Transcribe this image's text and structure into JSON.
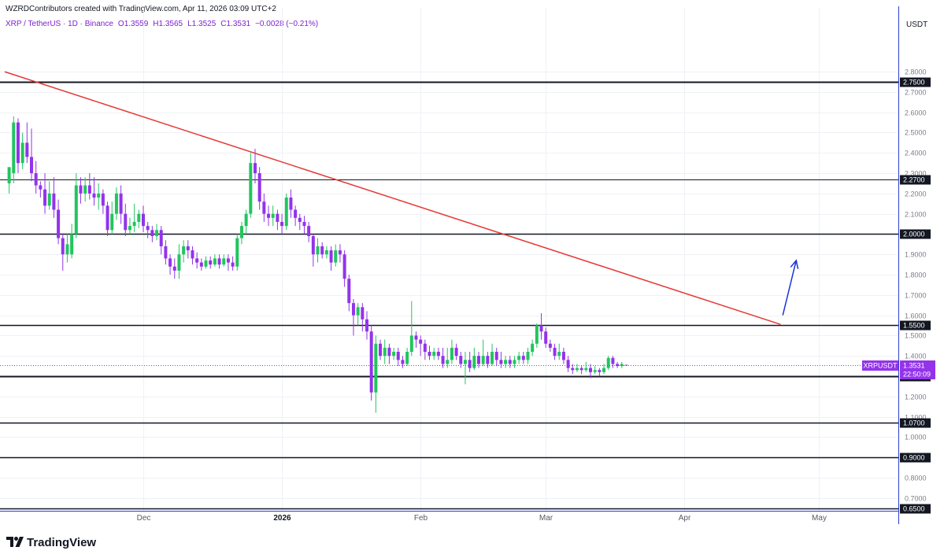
{
  "header": {
    "credit": "WZRDContributors created with TradingView.com, Apr 11, 2026 03:09 UTC+2",
    "symbol": "XRP / TetherUS · 1D · Binance",
    "open": "O1.3559",
    "high": "H1.3565",
    "low": "L1.3525",
    "close": "C1.3531",
    "change": "−0.0028 (−0.21%)"
  },
  "axis_unit": "USDT",
  "brand": {
    "name": "TradingView"
  },
  "colors": {
    "up": "#22c55e",
    "down": "#9333ea",
    "trendline": "#e53935",
    "arrow": "#1a33d6",
    "level": "#131722",
    "grid": "#eef1f6",
    "price_tag": "#9333ea"
  },
  "current_price": {
    "symbol": "XRPUSDT",
    "price": "1.3531",
    "countdown": "22:50:09",
    "value": 1.3531
  },
  "chart_data": {
    "type": "candlestick",
    "interval": "1D",
    "y_range": [
      0.62,
      2.88
    ],
    "y_ticks": [
      "2.8000",
      "2.7000",
      "2.6000",
      "2.5000",
      "2.4000",
      "2.3000",
      "2.2000",
      "2.1000",
      "2.0000",
      "1.9000",
      "1.8000",
      "1.7000",
      "1.6000",
      "1.5000",
      "1.4000",
      "1.3000",
      "1.2000",
      "1.1000",
      "1.0000",
      "0.9000",
      "0.8000",
      "0.7000"
    ],
    "x_ticks": [
      {
        "label": "Dec",
        "day": 30,
        "year": false
      },
      {
        "label": "2026",
        "day": 61,
        "year": true
      },
      {
        "label": "Feb",
        "day": 92,
        "year": false
      },
      {
        "label": "Mar",
        "day": 120,
        "year": false
      },
      {
        "label": "Apr",
        "day": 151,
        "year": false
      },
      {
        "label": "May",
        "day": 181,
        "year": false
      }
    ],
    "levels": [
      {
        "value": 2.75,
        "label": "2.7500",
        "width": 2
      },
      {
        "value": 2.27,
        "label": "2.2700",
        "width": 1
      },
      {
        "value": 2.0,
        "label": "2.0000",
        "width": 1.5
      },
      {
        "value": 1.55,
        "label": "1.5500",
        "width": 1.5
      },
      {
        "value": 1.3,
        "label": "1.3000",
        "width": 2
      },
      {
        "value": 1.07,
        "label": "1.0700",
        "width": 1.5
      },
      {
        "value": 0.9,
        "label": "0.9000",
        "width": 1.5
      },
      {
        "value": 0.65,
        "label": "0.6500",
        "width": 1.5
      }
    ],
    "trendline": {
      "from": {
        "day": -1,
        "value": 2.8
      },
      "to": {
        "day": 172.5,
        "value": 1.555
      }
    },
    "arrow": {
      "from": {
        "day": 173,
        "value": 1.6
      },
      "to": {
        "day": 176,
        "value": 1.87
      }
    },
    "candles": [
      [
        0,
        2.25,
        2.33,
        2.3,
        2.2
      ],
      [
        1,
        2.3,
        2.55,
        2.58,
        2.25
      ],
      [
        2,
        2.55,
        2.35,
        2.57,
        2.3
      ],
      [
        3,
        2.35,
        2.45,
        2.5,
        2.32
      ],
      [
        4,
        2.45,
        2.38,
        2.55,
        2.35
      ],
      [
        5,
        2.38,
        2.3,
        2.52,
        2.26
      ],
      [
        6,
        2.3,
        2.24,
        2.36,
        2.2
      ],
      [
        7,
        2.24,
        2.22,
        2.26,
        2.18
      ],
      [
        8,
        2.22,
        2.14,
        2.3,
        2.1
      ],
      [
        9,
        2.14,
        2.2,
        2.26,
        2.12
      ],
      [
        10,
        2.2,
        2.12,
        2.28,
        2.08
      ],
      [
        11,
        2.12,
        1.98,
        2.17,
        1.95
      ],
      [
        12,
        1.98,
        1.9,
        2.0,
        1.82
      ],
      [
        13,
        1.9,
        1.95,
        2.0,
        1.86
      ],
      [
        14,
        1.9,
        2.0,
        2.05,
        1.88
      ],
      [
        15,
        2.0,
        2.24,
        2.3,
        1.98
      ],
      [
        16,
        2.24,
        2.2,
        2.28,
        2.15
      ],
      [
        17,
        2.2,
        2.24,
        2.28,
        2.16
      ],
      [
        18,
        2.24,
        2.2,
        2.3,
        2.17
      ],
      [
        19,
        2.2,
        2.18,
        2.28,
        2.14
      ],
      [
        20,
        2.18,
        2.2,
        2.25,
        2.12
      ],
      [
        21,
        2.2,
        2.14,
        2.22,
        2.1
      ],
      [
        22,
        2.14,
        2.02,
        2.16,
        1.99
      ],
      [
        23,
        2.02,
        2.1,
        2.16,
        2.0
      ],
      [
        24,
        2.1,
        2.2,
        2.23,
        2.07
      ],
      [
        25,
        2.2,
        2.1,
        2.24,
        2.05
      ],
      [
        26,
        2.1,
        2.02,
        2.15,
        1.99
      ],
      [
        27,
        2.02,
        2.04,
        2.08,
        2.0
      ],
      [
        28,
        2.04,
        2.06,
        2.15,
        2.01
      ],
      [
        29,
        2.06,
        2.1,
        2.12,
        2.03
      ],
      [
        30,
        2.1,
        2.04,
        2.14,
        2.01
      ],
      [
        31,
        2.04,
        2.02,
        2.06,
        1.98
      ],
      [
        32,
        2.02,
        1.99,
        2.04,
        1.96
      ],
      [
        33,
        1.99,
        2.02,
        2.05,
        1.97
      ],
      [
        34,
        2.02,
        1.94,
        2.04,
        1.9
      ],
      [
        35,
        1.94,
        1.88,
        1.97,
        1.85
      ],
      [
        36,
        1.88,
        1.84,
        1.9,
        1.8
      ],
      [
        37,
        1.84,
        1.82,
        1.88,
        1.78
      ],
      [
        38,
        1.82,
        1.9,
        1.95,
        1.78
      ],
      [
        39,
        1.9,
        1.94,
        1.97,
        1.86
      ],
      [
        40,
        1.94,
        1.92,
        1.97,
        1.88
      ],
      [
        41,
        1.92,
        1.88,
        1.94,
        1.85
      ],
      [
        42,
        1.88,
        1.86,
        1.91,
        1.83
      ],
      [
        43,
        1.86,
        1.84,
        1.88,
        1.82
      ],
      [
        44,
        1.84,
        1.87,
        1.89,
        1.83
      ],
      [
        45,
        1.87,
        1.85,
        1.89,
        1.83
      ],
      [
        46,
        1.85,
        1.88,
        1.9,
        1.84
      ],
      [
        47,
        1.88,
        1.85,
        1.9,
        1.83
      ],
      [
        48,
        1.85,
        1.88,
        1.9,
        1.84
      ],
      [
        49,
        1.88,
        1.86,
        1.9,
        1.82
      ],
      [
        50,
        1.86,
        1.84,
        1.89,
        1.82
      ],
      [
        51,
        1.84,
        1.98,
        2.0,
        1.82
      ],
      [
        52,
        1.98,
        2.04,
        2.06,
        1.95
      ],
      [
        53,
        2.04,
        2.1,
        2.12,
        2.0
      ],
      [
        54,
        2.1,
        2.35,
        2.4,
        2.08
      ],
      [
        55,
        2.35,
        2.3,
        2.42,
        2.25
      ],
      [
        56,
        2.3,
        2.16,
        2.33,
        2.12
      ],
      [
        57,
        2.16,
        2.1,
        2.2,
        2.06
      ],
      [
        58,
        2.1,
        2.08,
        2.14,
        2.04
      ],
      [
        59,
        2.08,
        2.1,
        2.14,
        2.04
      ],
      [
        60,
        2.1,
        2.06,
        2.12,
        2.02
      ],
      [
        61,
        2.06,
        2.04,
        2.1,
        2.0
      ],
      [
        62,
        2.04,
        2.18,
        2.2,
        2.02
      ],
      [
        63,
        2.18,
        2.12,
        2.22,
        2.08
      ],
      [
        64,
        2.12,
        2.08,
        2.14,
        2.04
      ],
      [
        65,
        2.08,
        2.06,
        2.1,
        2.02
      ],
      [
        66,
        2.06,
        2.04,
        2.09,
        2.0
      ],
      [
        67,
        2.04,
        1.99,
        2.06,
        1.96
      ],
      [
        68,
        1.99,
        1.9,
        2.0,
        1.84
      ],
      [
        69,
        1.9,
        1.94,
        1.98,
        1.86
      ],
      [
        70,
        1.94,
        1.9,
        1.96,
        1.88
      ],
      [
        71,
        1.9,
        1.92,
        1.94,
        1.88
      ],
      [
        72,
        1.92,
        1.86,
        1.94,
        1.82
      ],
      [
        73,
        1.86,
        1.92,
        1.95,
        1.84
      ],
      [
        74,
        1.92,
        1.9,
        1.95,
        1.86
      ],
      [
        75,
        1.9,
        1.78,
        1.92,
        1.74
      ],
      [
        76,
        1.78,
        1.66,
        1.8,
        1.62
      ],
      [
        77,
        1.66,
        1.6,
        1.68,
        1.5
      ],
      [
        78,
        1.6,
        1.64,
        1.66,
        1.55
      ],
      [
        79,
        1.64,
        1.58,
        1.66,
        1.52
      ],
      [
        80,
        1.58,
        1.52,
        1.62,
        1.48
      ],
      [
        81,
        1.52,
        1.22,
        1.55,
        1.18
      ],
      [
        82,
        1.22,
        1.46,
        1.5,
        1.12
      ],
      [
        83,
        1.46,
        1.4,
        1.48,
        1.38
      ],
      [
        84,
        1.4,
        1.44,
        1.48,
        1.36
      ],
      [
        85,
        1.44,
        1.4,
        1.46,
        1.36
      ],
      [
        86,
        1.4,
        1.42,
        1.44,
        1.38
      ],
      [
        87,
        1.42,
        1.38,
        1.44,
        1.35
      ],
      [
        88,
        1.38,
        1.36,
        1.4,
        1.34
      ],
      [
        89,
        1.36,
        1.42,
        1.44,
        1.35
      ],
      [
        90,
        1.42,
        1.5,
        1.67,
        1.4
      ],
      [
        91,
        1.5,
        1.48,
        1.52,
        1.44
      ],
      [
        92,
        1.48,
        1.46,
        1.5,
        1.4
      ],
      [
        93,
        1.46,
        1.42,
        1.48,
        1.38
      ],
      [
        94,
        1.42,
        1.4,
        1.45,
        1.38
      ],
      [
        95,
        1.4,
        1.42,
        1.44,
        1.38
      ],
      [
        96,
        1.42,
        1.4,
        1.44,
        1.38
      ],
      [
        97,
        1.4,
        1.36,
        1.44,
        1.34
      ],
      [
        98,
        1.36,
        1.38,
        1.44,
        1.34
      ],
      [
        99,
        1.38,
        1.44,
        1.48,
        1.36
      ],
      [
        100,
        1.44,
        1.4,
        1.46,
        1.38
      ],
      [
        101,
        1.4,
        1.36,
        1.42,
        1.34
      ],
      [
        102,
        1.36,
        1.38,
        1.42,
        1.26
      ],
      [
        103,
        1.38,
        1.34,
        1.42,
        1.32
      ],
      [
        104,
        1.34,
        1.4,
        1.44,
        1.33
      ],
      [
        105,
        1.4,
        1.36,
        1.42,
        1.34
      ],
      [
        106,
        1.36,
        1.4,
        1.48,
        1.35
      ],
      [
        107,
        1.4,
        1.36,
        1.42,
        1.34
      ],
      [
        108,
        1.36,
        1.42,
        1.46,
        1.35
      ],
      [
        109,
        1.42,
        1.38,
        1.44,
        1.35
      ],
      [
        110,
        1.38,
        1.36,
        1.42,
        1.34
      ],
      [
        111,
        1.36,
        1.38,
        1.4,
        1.34
      ],
      [
        112,
        1.38,
        1.36,
        1.4,
        1.34
      ],
      [
        113,
        1.36,
        1.38,
        1.4,
        1.34
      ],
      [
        114,
        1.38,
        1.4,
        1.42,
        1.36
      ],
      [
        115,
        1.4,
        1.38,
        1.42,
        1.36
      ],
      [
        116,
        1.38,
        1.42,
        1.44,
        1.36
      ],
      [
        117,
        1.42,
        1.46,
        1.48,
        1.4
      ],
      [
        118,
        1.46,
        1.55,
        1.56,
        1.44
      ],
      [
        119,
        1.55,
        1.52,
        1.61,
        1.48
      ],
      [
        120,
        1.52,
        1.46,
        1.54,
        1.44
      ],
      [
        121,
        1.46,
        1.44,
        1.48,
        1.42
      ],
      [
        122,
        1.44,
        1.4,
        1.46,
        1.38
      ],
      [
        123,
        1.4,
        1.42,
        1.46,
        1.38
      ],
      [
        124,
        1.42,
        1.38,
        1.44,
        1.36
      ],
      [
        125,
        1.38,
        1.34,
        1.4,
        1.32
      ],
      [
        126,
        1.34,
        1.33,
        1.36,
        1.31
      ],
      [
        127,
        1.33,
        1.34,
        1.36,
        1.32
      ],
      [
        128,
        1.34,
        1.33,
        1.35,
        1.31
      ],
      [
        129,
        1.33,
        1.34,
        1.37,
        1.32
      ],
      [
        130,
        1.34,
        1.32,
        1.36,
        1.29
      ],
      [
        131,
        1.32,
        1.33,
        1.35,
        1.31
      ],
      [
        132,
        1.33,
        1.32,
        1.34,
        1.3
      ],
      [
        133,
        1.32,
        1.34,
        1.36,
        1.31
      ],
      [
        134,
        1.34,
        1.39,
        1.4,
        1.33
      ],
      [
        135,
        1.39,
        1.36,
        1.4,
        1.34
      ],
      [
        136,
        1.36,
        1.35,
        1.37,
        1.34
      ],
      [
        137,
        1.35,
        1.36,
        1.37,
        1.34
      ],
      [
        138,
        1.3559,
        1.3531,
        1.3565,
        1.3525
      ]
    ]
  }
}
